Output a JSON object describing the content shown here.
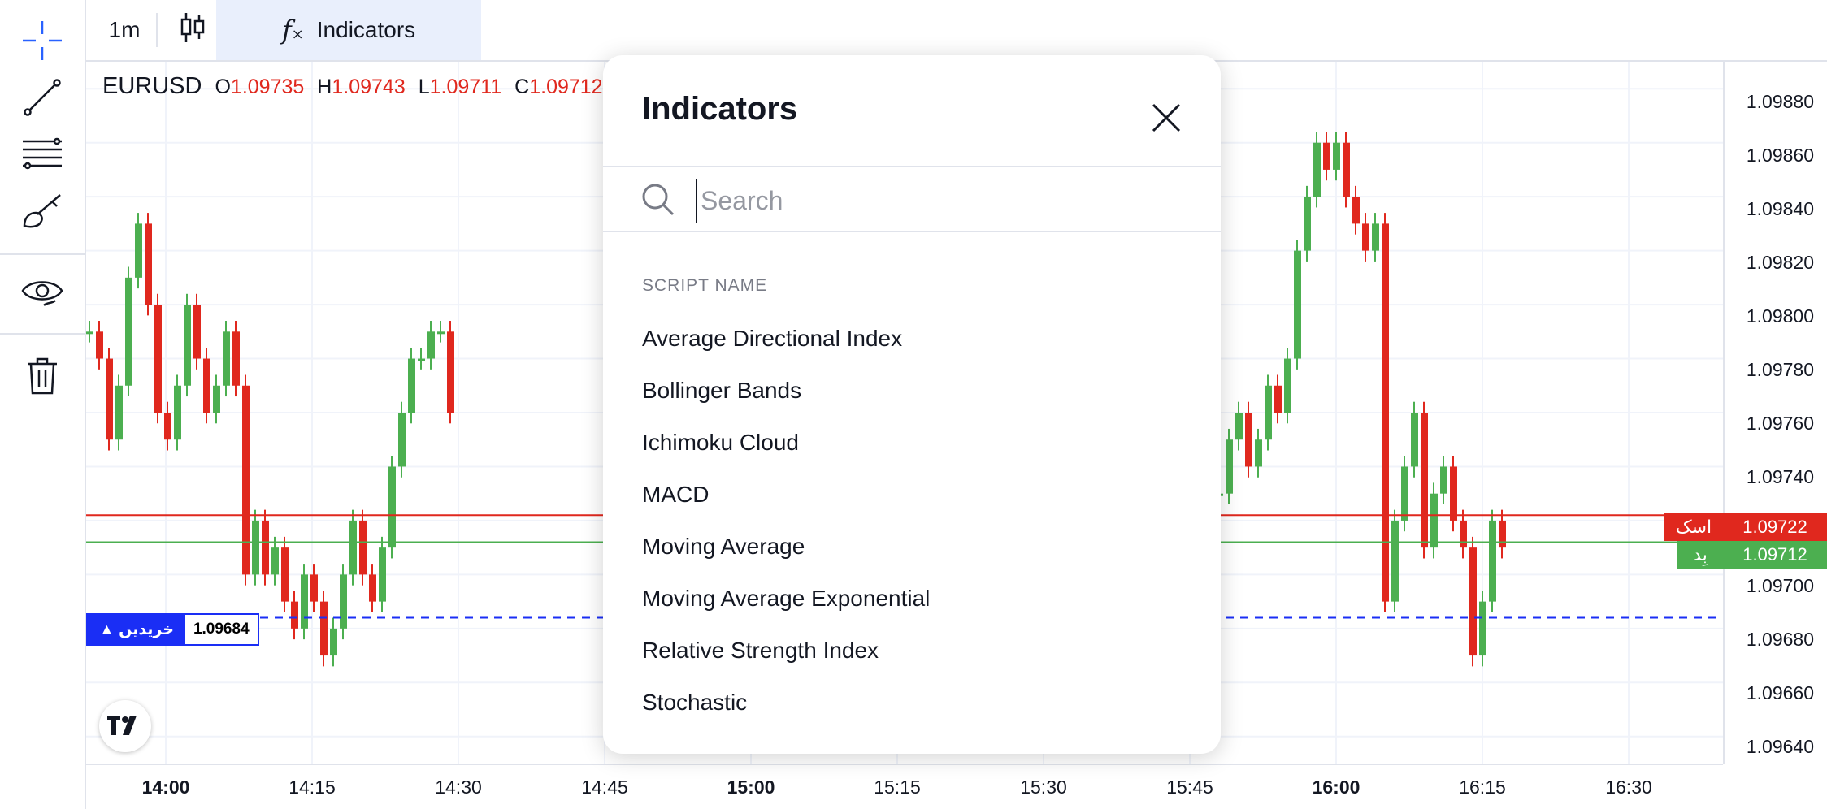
{
  "toolbar": {
    "interval_label": "1m",
    "indicators_label": "Indicators"
  },
  "legend": {
    "symbol": "EURUSD",
    "o_label": "O",
    "o_value": "1.09735",
    "h_label": "H",
    "h_value": "1.09743",
    "l_label": "L",
    "l_value": "1.09711",
    "c_label": "C",
    "c_value": "1.09712"
  },
  "price_axis": {
    "labels": [
      "1.09880",
      "1.09860",
      "1.09840",
      "1.09820",
      "1.09800",
      "1.09780",
      "1.09760",
      "1.09740",
      "1.09700",
      "1.09680",
      "1.09660",
      "1.09640"
    ]
  },
  "time_axis": {
    "labels": [
      "14:00",
      "14:15",
      "14:30",
      "14:45",
      "15:00",
      "15:15",
      "15:30",
      "15:45",
      "16:00",
      "16:15",
      "16:30"
    ]
  },
  "ask": {
    "label": "اسک",
    "price": "1.09722",
    "color": "#e0281e"
  },
  "bid": {
    "label": "بِد",
    "price": "1.09712",
    "color": "#4caf50"
  },
  "buy_order": {
    "label": "▲ خریدیں",
    "price": "1.09684",
    "color": "#1a2ef5"
  },
  "dialog": {
    "title": "Indicators",
    "search_placeholder": "Search",
    "section_header": "SCRIPT NAME",
    "items": [
      "Average Directional Index",
      "Bollinger Bands",
      "Ichimoku Cloud",
      "MACD",
      "Moving Average",
      "Moving Average Exponential",
      "Relative Strength Index",
      "Stochastic"
    ]
  },
  "colors": {
    "up": "#4caf50",
    "down": "#e0281e",
    "grid": "#f0f3fa",
    "accent": "#2962ff"
  }
}
